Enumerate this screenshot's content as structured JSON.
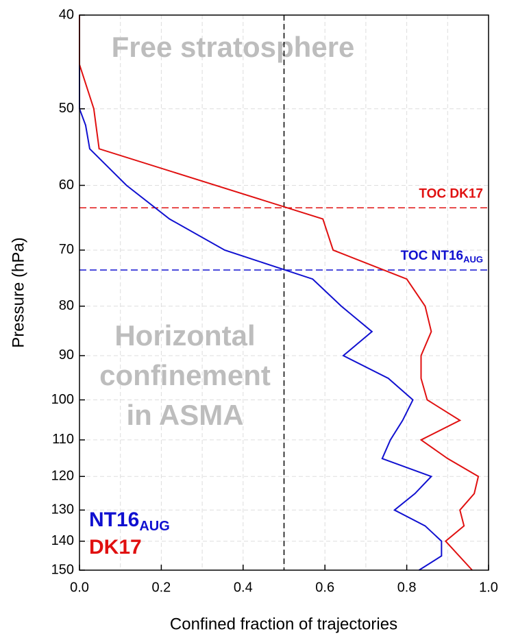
{
  "chart_data": {
    "type": "line",
    "xlabel": "Confined fraction of trajectories",
    "ylabel": "Pressure (hPa)",
    "xlim": [
      0,
      1
    ],
    "ylim": [
      40,
      150
    ],
    "ylog": true,
    "yinverted": true,
    "xticks": [
      {
        "value": 0,
        "label": "0.0"
      },
      0.2,
      0.4,
      0.6,
      0.8,
      {
        "value": 1,
        "label": "1.0"
      }
    ],
    "xminorticks": [
      0.1,
      0.3,
      0.5,
      0.7,
      0.9
    ],
    "yticks": [
      40,
      50,
      60,
      70,
      80,
      90,
      100,
      110,
      120,
      130,
      140,
      150
    ],
    "grid": true,
    "legend": "lower left",
    "vline": 0.5,
    "series": [
      {
        "name": "NT16",
        "name_sub": "AUG",
        "color": "#1010d0",
        "x": [
          0,
          0,
          0.015,
          0.025,
          0.115,
          0.22,
          0.355,
          0.57,
          0.64,
          0.715,
          0.645,
          0.755,
          0.815,
          0.79,
          0.76,
          0.74,
          0.86,
          0.82,
          0.77,
          0.845,
          0.885,
          0.885,
          0.83
        ],
        "values": [
          40,
          50,
          52,
          55,
          60,
          65,
          70,
          75,
          80,
          85,
          90,
          95,
          100,
          105,
          110,
          115,
          120,
          125,
          130,
          135,
          140,
          145,
          150
        ]
      },
      {
        "name": "DK17",
        "color": "#e01010",
        "x": [
          0,
          0,
          0.035,
          0.048,
          0.595,
          0.62,
          0.8,
          0.845,
          0.86,
          0.835,
          0.835,
          0.85,
          0.93,
          0.835,
          0.9,
          0.975,
          0.965,
          0.93,
          0.94,
          0.895,
          0.96
        ],
        "values": [
          40,
          45,
          50,
          55,
          65,
          70,
          75,
          80,
          85,
          90,
          95,
          100,
          105,
          110,
          115,
          120,
          125,
          130,
          135,
          140,
          150
        ]
      }
    ],
    "hlines": [
      {
        "text": "TOC DK17",
        "value": 63.3,
        "color": "#e01010"
      },
      {
        "text": "TOC NT16",
        "sub": "AUG",
        "value": 73.4,
        "color": "#1010d0"
      }
    ],
    "regions": [
      {
        "lines": [
          "Free stratosphere"
        ]
      },
      {
        "lines": [
          "Horizontal",
          "confinement",
          "in ASMA"
        ]
      }
    ]
  }
}
